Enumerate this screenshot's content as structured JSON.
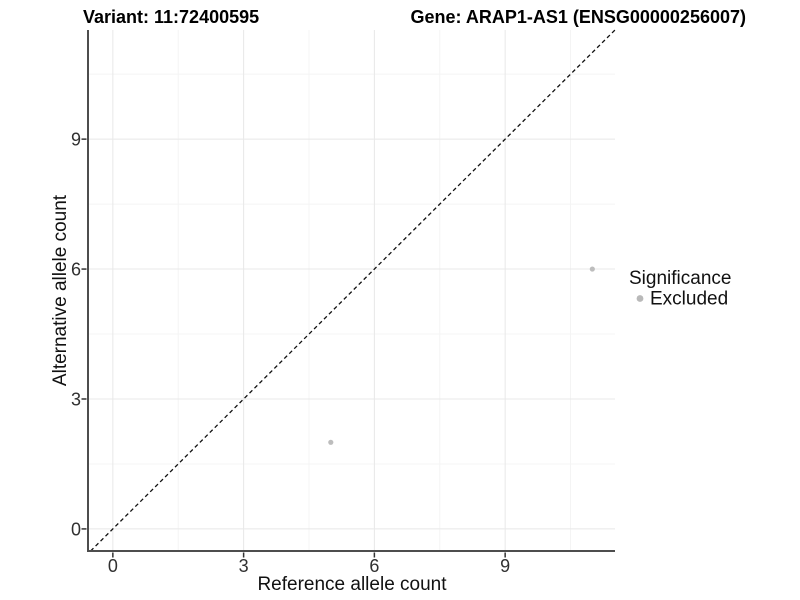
{
  "titles": {
    "left": "Variant: 11:72400595",
    "right": "Gene: ARAP1-AS1 (ENSG00000256007)"
  },
  "legend": {
    "title": "Significance",
    "items": [
      {
        "label": "Excluded",
        "color": "#b9b9b9"
      }
    ]
  },
  "colors": {
    "background": "#ffffff",
    "grid_major": "#e8e8e8",
    "grid_minor": "#f4f4f4",
    "axis_line": "#4d4d4d",
    "tick_mark": "#333333",
    "tick_label": "#303030",
    "diagonal_line": "#111111",
    "point": "#bdbdbd"
  },
  "chart_data": {
    "type": "scatter",
    "title": "Variant: 11:72400595 — Gene: ARAP1-AS1 (ENSG00000256007)",
    "xlabel": "Reference allele count",
    "ylabel": "Alternative allele count",
    "xlim": [
      -0.57,
      11.52
    ],
    "ylim": [
      -0.51,
      11.52
    ],
    "x_ticks": [
      0,
      3,
      6,
      9
    ],
    "y_ticks": [
      0,
      3,
      6,
      9
    ],
    "x_minor_ticks": [
      1.5,
      4.5,
      7.5,
      10.5
    ],
    "y_minor_ticks": [
      1.5,
      4.5,
      7.5,
      10.5
    ],
    "grid": "major+minor",
    "legend_position": "right",
    "series": [
      {
        "name": "Excluded",
        "points": [
          {
            "x": 5,
            "y": 2
          },
          {
            "x": 11,
            "y": 6
          }
        ]
      }
    ],
    "identity_line": {
      "slope": 1,
      "intercept": 0,
      "style": "dashed"
    }
  }
}
